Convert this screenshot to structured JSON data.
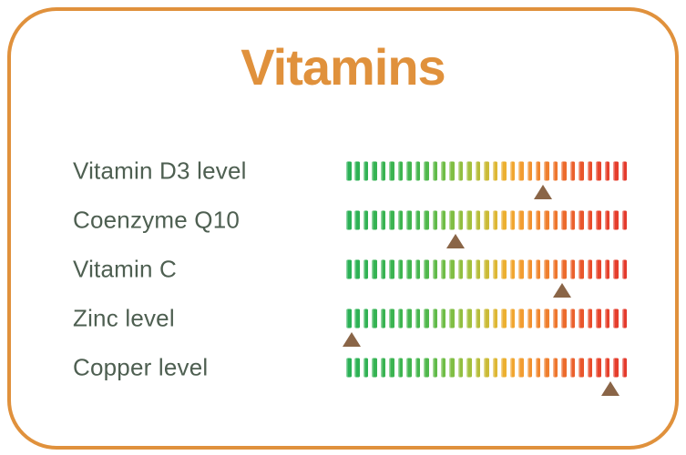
{
  "title": "Vitamins",
  "colors": {
    "accent": "#E0913C",
    "label_text": "#4E5F51",
    "marker": "#8A6547",
    "scale_stops": [
      {
        "pos": 0.0,
        "color": "#2BB156"
      },
      {
        "pos": 0.26,
        "color": "#46B64E"
      },
      {
        "pos": 0.35,
        "color": "#72BD45"
      },
      {
        "pos": 0.45,
        "color": "#A9BF3C"
      },
      {
        "pos": 0.52,
        "color": "#D8B935"
      },
      {
        "pos": 0.57,
        "color": "#F0AE30"
      },
      {
        "pos": 0.63,
        "color": "#F29B31"
      },
      {
        "pos": 0.67,
        "color": "#F08C30"
      },
      {
        "pos": 0.75,
        "color": "#EE762D"
      },
      {
        "pos": 0.83,
        "color": "#EA5A2C"
      },
      {
        "pos": 0.9,
        "color": "#E7452C"
      },
      {
        "pos": 1.0,
        "color": "#E43A2C"
      }
    ]
  },
  "scale": {
    "tick_count": 33
  },
  "rows": [
    {
      "label": "Vitamin D3 level",
      "marker_pct": 70
    },
    {
      "label": "Coenzyme Q10",
      "marker_pct": 39
    },
    {
      "label": "Vitamin C",
      "marker_pct": 77
    },
    {
      "label": "Zinc level",
      "marker_pct": 2
    },
    {
      "label": "Copper level",
      "marker_pct": 94
    }
  ],
  "chart_data": {
    "type": "bar",
    "variant": "color-scale-gauge",
    "title": "Vitamins",
    "categories": [
      "Vitamin D3 level",
      "Coenzyme Q10",
      "Vitamin C",
      "Zinc level",
      "Copper level"
    ],
    "values": [
      70,
      39,
      77,
      2,
      94
    ],
    "xlim": [
      0,
      100
    ],
    "scale_meaning": "triangle marker position along green-to-red tick scale, percent of bar width",
    "legend": false,
    "grid": false
  }
}
